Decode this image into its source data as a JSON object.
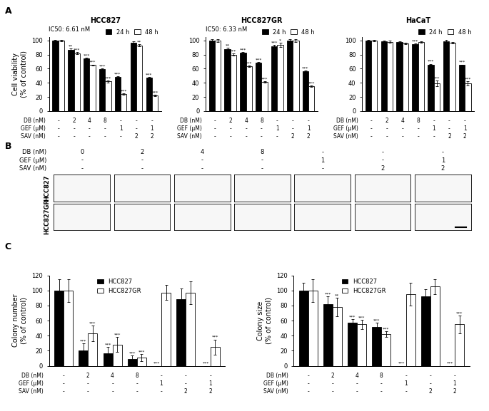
{
  "panel_labels": [
    "A",
    "B",
    "C"
  ],
  "chart_data": [
    {
      "type": "bar",
      "panel": "A",
      "title": "HCC827",
      "annotation": "IC50: 6.61 nM",
      "y_label": "Cell viability\n(% of control)",
      "categories": [
        null,
        null,
        null,
        null,
        null,
        null,
        null
      ],
      "series": [
        {
          "name": "24 h",
          "color": "#000000",
          "values": [
            100,
            87,
            75,
            59,
            48,
            97,
            47
          ],
          "errors": [
            1,
            1.5,
            1,
            1,
            1,
            1.5,
            1
          ],
          "stars": [
            null,
            "**",
            "***",
            "***",
            "***",
            null,
            "***"
          ]
        },
        {
          "name": "48 h",
          "color": "#ffffff",
          "values": [
            100,
            82,
            65,
            42,
            24,
            93,
            22
          ],
          "errors": [
            1,
            1.5,
            1,
            1.5,
            1,
            1.5,
            1
          ],
          "stars": [
            null,
            "***",
            "***",
            "***",
            "***",
            "**",
            "***"
          ]
        }
      ],
      "treatments": [
        {
          "name": "DB (nM)",
          "values": [
            "-",
            "2",
            "4",
            "8",
            "-",
            "-",
            "-"
          ]
        },
        {
          "name": "GEF (µM)",
          "values": [
            "-",
            "-",
            "-",
            "-",
            "1",
            "-",
            "1"
          ]
        },
        {
          "name": "SAV (nM)",
          "values": [
            "-",
            "-",
            "-",
            "-",
            "-",
            "2",
            "2"
          ]
        }
      ],
      "ylim": [
        0,
        105
      ],
      "yticks": [
        0,
        20,
        40,
        60,
        80,
        100
      ],
      "legend": "upper right"
    },
    {
      "type": "bar",
      "panel": "A",
      "title": "HCC827GR",
      "annotation": "IC50: 6.33 nM",
      "categories": [
        null,
        null,
        null,
        null,
        null,
        null,
        null
      ],
      "series": [
        {
          "name": "24 h",
          "color": "#000000",
          "values": [
            100,
            88,
            83,
            69,
            92,
            100,
            56
          ],
          "errors": [
            2,
            1.5,
            1,
            1,
            2,
            2,
            1
          ],
          "stars": [
            null,
            "**",
            "***",
            "***",
            "***",
            null,
            "***"
          ]
        },
        {
          "name": "48 h",
          "color": "#ffffff",
          "values": [
            100,
            80,
            63,
            41,
            94,
            100,
            35
          ],
          "errors": [
            2,
            1.5,
            1,
            1,
            3,
            2,
            1
          ],
          "stars": [
            null,
            "***",
            "***",
            "***",
            "*",
            null,
            "***"
          ]
        }
      ],
      "treatments": [
        {
          "name": "DB (nM)",
          "values": [
            "-",
            "2",
            "4",
            "8",
            "-",
            "-",
            "-"
          ]
        },
        {
          "name": "GEF (µM)",
          "values": [
            "-",
            "-",
            "-",
            "-",
            "1",
            "-",
            "1"
          ]
        },
        {
          "name": "SAV (nM)",
          "values": [
            "-",
            "-",
            "-",
            "-",
            "-",
            "2",
            "2"
          ]
        }
      ],
      "ylim": [
        0,
        105
      ],
      "yticks": [
        0,
        20,
        40,
        60,
        80,
        100
      ],
      "legend": "upper right"
    },
    {
      "type": "bar",
      "panel": "A",
      "title": "HaCaT",
      "categories": [
        null,
        null,
        null,
        null,
        null,
        null,
        null
      ],
      "series": [
        {
          "name": "24 h",
          "color": "#000000",
          "values": [
            100,
            99,
            98,
            95,
            66,
            99,
            65
          ],
          "errors": [
            1,
            1,
            1,
            1,
            1,
            2,
            1
          ],
          "stars": [
            null,
            null,
            null,
            "***",
            "***",
            null,
            "***"
          ]
        },
        {
          "name": "48 h",
          "color": "#ffffff",
          "values": [
            100,
            98,
            96,
            98,
            39,
            97,
            39
          ],
          "errors": [
            1,
            1.5,
            1,
            1,
            4,
            1,
            3
          ],
          "stars": [
            null,
            null,
            null,
            null,
            "***",
            null,
            "***"
          ]
        }
      ],
      "treatments": [
        {
          "name": "DB (nM)",
          "values": [
            "-",
            "2",
            "4",
            "8",
            "-",
            "-",
            "-"
          ]
        },
        {
          "name": "GEF (µM)",
          "values": [
            "-",
            "-",
            "-",
            "-",
            "1",
            "-",
            "1"
          ]
        },
        {
          "name": "SAV (nM)",
          "values": [
            "-",
            "-",
            "-",
            "-",
            "-",
            "2",
            "2"
          ]
        }
      ],
      "ylim": [
        0,
        105
      ],
      "yticks": [
        0,
        20,
        40,
        60,
        80,
        100
      ],
      "legend": "upper right"
    },
    {
      "type": "bar",
      "panel": "C",
      "y_label": "Colony number\n(% of control)",
      "categories": [
        null,
        null,
        null,
        null,
        null,
        null,
        null
      ],
      "series": [
        {
          "name": "HCC827",
          "color": "#000000",
          "values": [
            100,
            20,
            17,
            9,
            0,
            88,
            0
          ],
          "errors": [
            15,
            10,
            8,
            5,
            0,
            15,
            0
          ],
          "stars": [
            null,
            "***",
            "***",
            "***",
            "***",
            null,
            "***"
          ]
        },
        {
          "name": "HCC827GR",
          "color": "#ffffff",
          "values": [
            100,
            43,
            28,
            11,
            97,
            97,
            25
          ],
          "errors": [
            15,
            10,
            10,
            5,
            10,
            15,
            10
          ],
          "stars": [
            null,
            "***",
            "***",
            "***",
            null,
            null,
            "***"
          ]
        }
      ],
      "treatments": [
        {
          "name": "DB (nM)",
          "values": [
            "-",
            "2",
            "4",
            "8",
            "-",
            "-",
            "-"
          ]
        },
        {
          "name": "GEF (µM)",
          "values": [
            "-",
            "-",
            "-",
            "-",
            "1",
            "-",
            "1"
          ]
        },
        {
          "name": "SAV (nM)",
          "values": [
            "-",
            "-",
            "-",
            "-",
            "-",
            "2",
            "2"
          ]
        }
      ],
      "ylim": [
        0,
        120
      ],
      "yticks": [
        0,
        20,
        40,
        60,
        80,
        100,
        120
      ],
      "legend": "upper center"
    },
    {
      "type": "bar",
      "panel": "C",
      "y_label": "Colony size\n(% of control)",
      "categories": [
        null,
        null,
        null,
        null,
        null,
        null,
        null
      ],
      "series": [
        {
          "name": "HCC827",
          "color": "#000000",
          "values": [
            100,
            82,
            57,
            52,
            0,
            92,
            0
          ],
          "errors": [
            10,
            10,
            5,
            5,
            0,
            10,
            0
          ],
          "stars": [
            null,
            "***",
            "***",
            "***",
            "***",
            null,
            "***"
          ]
        },
        {
          "name": "HCC827GR",
          "color": "#ffffff",
          "values": [
            100,
            78,
            55,
            42,
            95,
            105,
            55
          ],
          "errors": [
            15,
            12,
            6,
            4,
            15,
            10,
            12
          ],
          "stars": [
            null,
            "**",
            "***",
            "***",
            null,
            null,
            "***"
          ]
        }
      ],
      "treatments": [
        {
          "name": "DB (nM)",
          "values": [
            "-",
            "2",
            "4",
            "8",
            "-",
            "-",
            "-"
          ]
        },
        {
          "name": "GEF (µM)",
          "values": [
            "-",
            "-",
            "-",
            "-",
            "1",
            "-",
            "1"
          ]
        },
        {
          "name": "SAV (nM)",
          "values": [
            "-",
            "-",
            "-",
            "-",
            "-",
            "2",
            "2"
          ]
        }
      ],
      "ylim": [
        0,
        120
      ],
      "yticks": [
        0,
        20,
        40,
        60,
        80,
        100,
        120
      ],
      "legend": "upper center"
    }
  ],
  "colony_images": {
    "treatments": [
      {
        "name": "DB (nM)",
        "values": [
          "0",
          "2",
          "4",
          "8",
          "-",
          "-",
          "-"
        ]
      },
      {
        "name": "GEF (µM)",
        "values": [
          "-",
          "-",
          "-",
          "-",
          "1",
          "-",
          "1"
        ]
      },
      {
        "name": "SAV (nM)",
        "values": [
          "-",
          "-",
          "-",
          "-",
          "-",
          "2",
          "2"
        ]
      }
    ],
    "row_labels": [
      "HCC827",
      "HCC827GR"
    ]
  }
}
